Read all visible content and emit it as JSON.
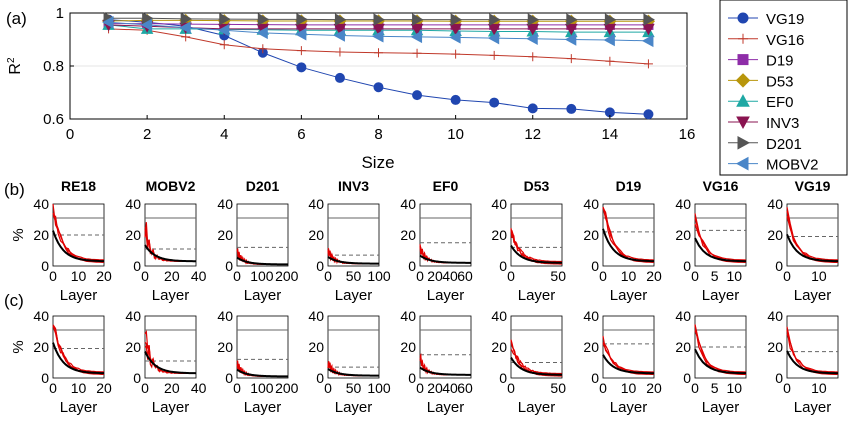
{
  "chart_data": [
    {
      "id": "a",
      "panel_label": "(a)",
      "type": "line",
      "xlabel": "Size",
      "ylabel": "R",
      "ylabel_sup": "2",
      "xlim": [
        0,
        16
      ],
      "ylim": [
        0.6,
        1.0
      ],
      "xticks": [
        0,
        2,
        4,
        6,
        8,
        10,
        12,
        14,
        16
      ],
      "yticks": [
        0.6,
        0.8,
        1
      ],
      "ytick_labels": [
        "0.6",
        "0.8",
        "1"
      ],
      "x": [
        1,
        2,
        3,
        4,
        5,
        6,
        7,
        8,
        9,
        10,
        11,
        12,
        13,
        14,
        15
      ],
      "legend_position": "outside-right",
      "series": [
        {
          "name": "VG19",
          "color": "#2046b0",
          "marker": "circle",
          "values": [
            0.975,
            0.965,
            0.95,
            0.915,
            0.85,
            0.795,
            0.755,
            0.72,
            0.69,
            0.672,
            0.662,
            0.64,
            0.638,
            0.625,
            0.618
          ]
        },
        {
          "name": "VG16",
          "color": "#c0392b",
          "marker": "plus",
          "values": [
            0.94,
            0.935,
            0.91,
            0.88,
            0.865,
            0.858,
            0.853,
            0.85,
            0.848,
            0.845,
            0.84,
            0.835,
            0.828,
            0.818,
            0.808
          ]
        },
        {
          "name": "D19",
          "color": "#8e2da8",
          "marker": "square",
          "values": [
            0.96,
            0.96,
            0.958,
            0.957,
            0.956,
            0.955,
            0.955,
            0.955,
            0.955,
            0.955,
            0.955,
            0.955,
            0.955,
            0.955,
            0.955
          ]
        },
        {
          "name": "D53",
          "color": "#b8960c",
          "marker": "diamond",
          "values": [
            0.97,
            0.972,
            0.972,
            0.971,
            0.97,
            0.97,
            0.97,
            0.97,
            0.97,
            0.969,
            0.969,
            0.969,
            0.969,
            0.969,
            0.969
          ]
        },
        {
          "name": "EF0",
          "color": "#1fa8a4",
          "marker": "triangle-up",
          "values": [
            0.955,
            0.94,
            0.94,
            0.938,
            0.937,
            0.935,
            0.935,
            0.935,
            0.935,
            0.932,
            0.93,
            0.93,
            0.928,
            0.928,
            0.928
          ]
        },
        {
          "name": "INV3",
          "color": "#8a1450",
          "marker": "triangle-down",
          "values": [
            0.955,
            0.95,
            0.945,
            0.94,
            0.94,
            0.94,
            0.94,
            0.94,
            0.94,
            0.94,
            0.94,
            0.94,
            0.94,
            0.94,
            0.94
          ]
        },
        {
          "name": "D201",
          "color": "#555555",
          "marker": "triangle-right",
          "values": [
            0.98,
            0.98,
            0.978,
            0.977,
            0.976,
            0.976,
            0.975,
            0.975,
            0.975,
            0.975,
            0.975,
            0.975,
            0.975,
            0.975,
            0.975
          ]
        },
        {
          "name": "MOBV2",
          "color": "#4a86c8",
          "marker": "triangle-left",
          "values": [
            0.965,
            0.955,
            0.945,
            0.935,
            0.925,
            0.92,
            0.915,
            0.912,
            0.91,
            0.908,
            0.905,
            0.903,
            0.9,
            0.898,
            0.895
          ]
        }
      ]
    },
    {
      "id": "bc",
      "type": "line",
      "row_labels": [
        "(b)",
        "(c)"
      ],
      "ylabel": "%",
      "xlabel": "Layer",
      "ylim": [
        0,
        40
      ],
      "yticks": [
        0,
        20,
        40
      ],
      "panels": [
        {
          "title": "RE18",
          "xmax": 20,
          "xticks": [
            0,
            10,
            20
          ],
          "solid": 31,
          "dashed": [
            20,
            19
          ],
          "peak": [
            38,
            38
          ],
          "base": 3,
          "spiky": false
        },
        {
          "title": "MOBV2",
          "xmax": 38,
          "xticks": [
            0,
            20,
            40
          ],
          "solid": 31,
          "dashed": [
            11,
            11
          ],
          "peak": [
            30,
            38
          ],
          "base": 3,
          "spiky": true
        },
        {
          "title": "D201",
          "xmax": 205,
          "xticks": [
            0,
            100,
            200
          ],
          "solid": 31,
          "dashed": [
            12,
            12
          ],
          "peak": [
            12,
            12
          ],
          "base": 1,
          "spiky": true
        },
        {
          "title": "INV3",
          "xmax": 100,
          "xticks": [
            0,
            50,
            100
          ],
          "solid": 31,
          "dashed": [
            7,
            7
          ],
          "peak": [
            13,
            13
          ],
          "base": 1.5,
          "spiky": true
        },
        {
          "title": "EF0",
          "xmax": 68,
          "xticks": [
            0,
            20,
            40,
            60
          ],
          "solid": 31,
          "dashed": [
            15,
            15
          ],
          "peak": [
            15,
            15
          ],
          "base": 2,
          "spiky": true
        },
        {
          "title": "D53",
          "xmax": 54,
          "xticks": [
            0,
            50
          ],
          "solid": 31,
          "dashed": [
            12,
            10
          ],
          "peak": [
            22,
            22
          ],
          "base": 2,
          "spiky": false
        },
        {
          "title": "D19",
          "xmax": 20,
          "xticks": [
            0,
            10,
            20
          ],
          "solid": 31,
          "dashed": [
            22,
            22
          ],
          "peak": [
            40,
            25
          ],
          "base": 3,
          "spiky": false
        },
        {
          "title": "VG16",
          "xmax": 13,
          "xticks": [
            0,
            5,
            10
          ],
          "solid": 31,
          "dashed": [
            23,
            20
          ],
          "peak": [
            30,
            31
          ],
          "base": 3,
          "spiky": false
        },
        {
          "title": "VG19",
          "xmax": 16,
          "xticks": [
            0,
            10
          ],
          "solid": 31,
          "dashed": [
            19,
            17
          ],
          "peak": [
            34,
            29
          ],
          "base": 3,
          "spiky": false
        }
      ]
    }
  ]
}
